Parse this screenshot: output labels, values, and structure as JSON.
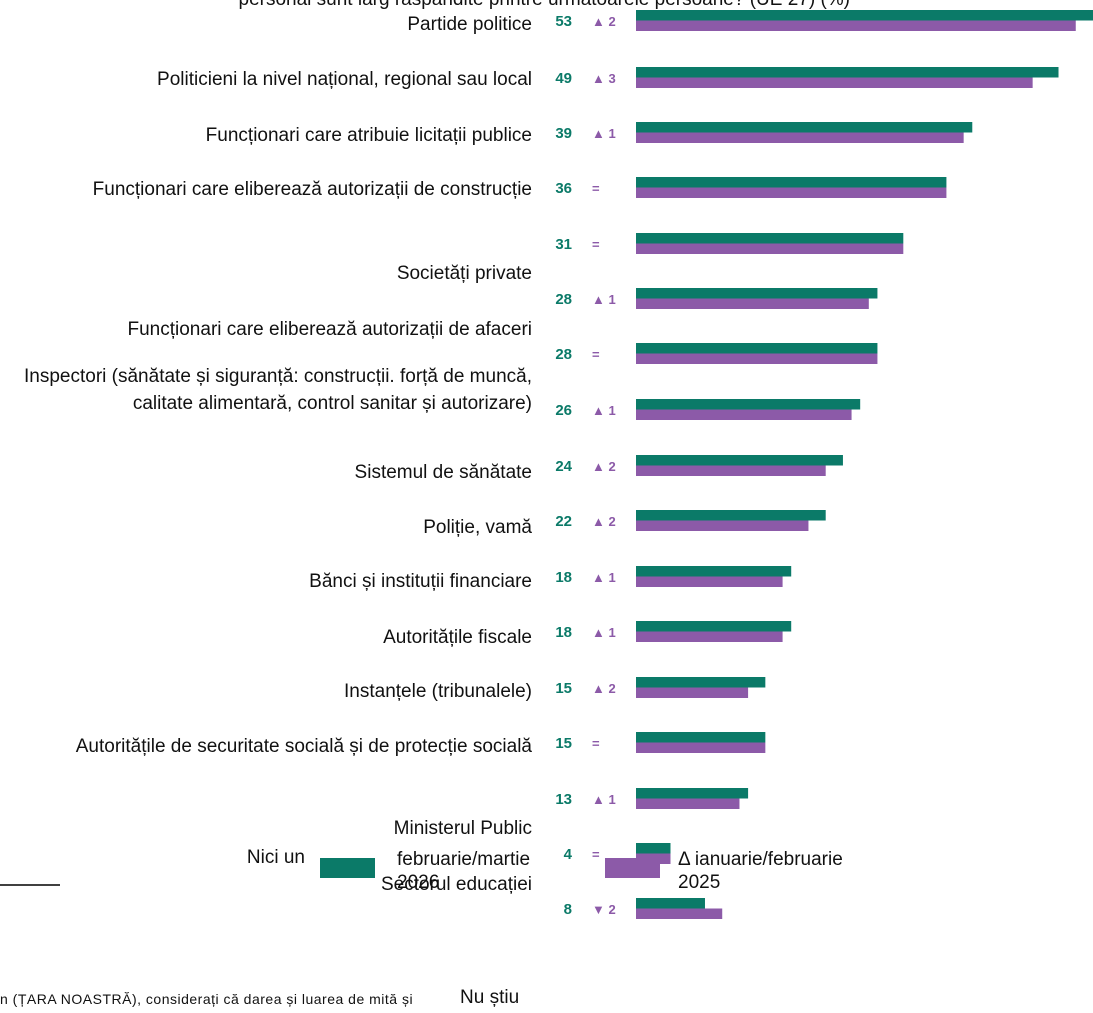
{
  "chart_data": {
    "type": "bar",
    "orientation": "horizontal",
    "title": "personal sunt larg răspândite printre următoarele persoane? (UE 27) (%)",
    "categories": [
      "Partide politice",
      "Politicieni la nivel național, regional sau local",
      "Funcționari care atribuie licitații publice",
      "Funcționari care eliberează autorizații de construcție",
      "Societăți private",
      "Funcționari care eliberează autorizații de afaceri",
      "Inspectori (sănătate și siguranță: construcții. forță de muncă, calitate alimentară, control sanitar și autorizare)",
      "Sistemul de sănătate",
      "Poliție, vamă",
      "Bănci și instituții financiare",
      "Autoritățile fiscale",
      "Instanțele (tribunalele)",
      "Autoritățile de securitate socială și de protecție socială",
      "Ministerul Public",
      "Sectorul educației",
      "Nici un",
      "Nu știu"
    ],
    "series": [
      {
        "name": "februarie/martie 2026",
        "color": "#0b7a68",
        "values": [
          53,
          49,
          39,
          36,
          31,
          28,
          28,
          26,
          24,
          22,
          18,
          18,
          15,
          15,
          13,
          4,
          8
        ]
      },
      {
        "name": "Δ ianuarie/februarie 2025",
        "color": "#8c5aa8",
        "values": [
          51,
          46,
          38,
          36,
          31,
          27,
          28,
          25,
          22,
          20,
          17,
          17,
          13,
          15,
          12,
          4,
          10
        ]
      }
    ],
    "deltas": [
      "▲ 2",
      "▲ 3",
      "▲ 1",
      "=",
      "=",
      "▲ 1",
      "=",
      "▲ 1",
      "▲ 2",
      "▲ 2",
      "▲ 1",
      "▲ 1",
      "▲ 2",
      "=",
      "▲ 1",
      "=",
      "▼ 2"
    ],
    "footnote": "n (ȚARA NOASTRĂ), considerați că darea și luarea de mită și"
  }
}
